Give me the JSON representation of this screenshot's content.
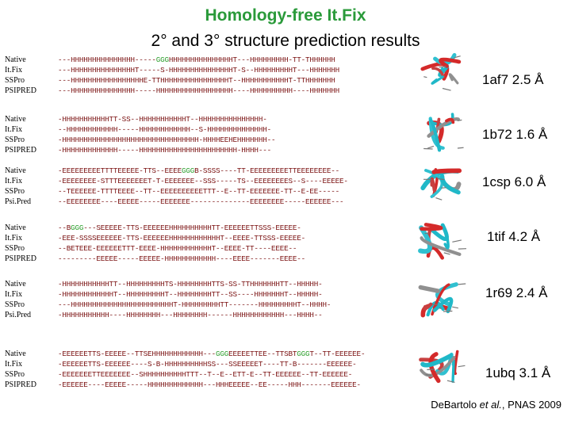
{
  "title": "Homology-free It.Fix",
  "subtitle": "2° and 3° structure prediction results",
  "footer": {
    "author": "DeBartolo ",
    "etal": "et al.",
    "journal": ", PNAS 2009"
  },
  "blocks": [
    {
      "labels": [
        "Native",
        "It.Fix",
        "SSPro",
        "PSIPRED"
      ],
      "seqs": [
        [
          "---HHHHHHHHHHHHHHH-----",
          "GGG",
          "HHHHHHHHHHHHHHHT---HHHHHHHHH-TT-THHHHHH"
        ],
        [
          "---HHHHHHHHHHHHHHHT-----S-HHHHHHHHHHHHHHHT-S--HHHHHHHHHT---HHHHHHH"
        ],
        [
          "---HHHHHHHHHHHHHHHHHE-TTHHHHHHHHHHHHHHHHT--HHHHHHHHHHHT-TTHHHHHHH"
        ],
        [
          "---HHHHHHHHHHHHHHH-----HHHHHHHHHHHHHHHHHH----HHHHHHHHHH----HHHHHHH"
        ]
      ],
      "caption": "1af7 2.5 Å"
    },
    {
      "labels": [
        "Native",
        "It.Fix",
        "SSPro",
        "PSIPRED"
      ],
      "seqs": [
        [
          "-HHHHHHHHHHHTT-SS--HHHHHHHHHHHT--HHHHHHHHHHHHHHH-"
        ],
        [
          "--HHHHHHHHHHHH-----HHHHHHHHHHHH--S-HHHHHHHHHHHHHH-"
        ],
        [
          "-HHHHHHHHHHHHHHHHHHHHHHHHHHHHHHHH-HHHHEEHEHHHHHHH--"
        ],
        [
          "-HHHHHHHHHHHHH-----HHHHHHHHHHHHHHHHHHHHHHH-HHHH---"
        ]
      ],
      "caption": "1b72 1.6 Å"
    },
    {
      "labels": [
        "Native",
        "It.Fix",
        "SSPro",
        "Psi.Pred"
      ],
      "seqs": [
        [
          "-EEEEEEEEETTTTEEEEE-TTS--EEEE",
          "GGG",
          "B-SSSS----TT-EEEEEEEEETTEEEEEEEE--"
        ],
        [
          "-EEEEEEEE-STTTEEEEEEET-T-EEEEEEE--SSS-----TS--EEEEEEEES--S----EEEEE-"
        ],
        [
          "--TEEEEEE-TTTTEEEE--TT--EEEEEEEEEETTT--E--TT-EEEEEEE-TT--E-EE-----"
        ],
        [
          "--EEEEEEEE----EEEEE-----EEEEEEE--------------EEEEEEEE-----EEEEEE---"
        ]
      ],
      "caption": "1csp 6.0 Å"
    },
    {
      "labels": [
        "Native",
        "It.Fix",
        "SSPro",
        "PSIPRED"
      ],
      "seqs": [
        [
          "--B",
          "GGG",
          "---SEEEEE-TTS-EEEEEEHHHHHHHHHHTT-EEEEEETTSSS-EEEEE-"
        ],
        [
          "-EEE-SSSSEEEEEE-TTS-EEEEEEHHHHHHHHHHHHT--EEEE-TTSSS-EEEEE-"
        ],
        [
          "--BETEEE-EEEEEETTT-EEEE-HHHHHHHHHHHHT--EEEE-TT----EEEE--"
        ],
        [
          "---------EEEEE-----EEEEE-HHHHHHHHHHHH----EEEE-------EEEE--"
        ]
      ],
      "caption": "1tif 4.2 Å"
    },
    {
      "labels": [
        "Native",
        "It.Fix",
        "SSPro",
        "Psi.Pred"
      ],
      "seqs": [
        [
          "-HHHHHHHHHHHTT--HHHHHHHHHTS-HHHHHHHHTTS-SS-TTHHHHHHHTT--HHHHH-"
        ],
        [
          "-HHHHHHHHHHHHT--HHHHHHHHHT--HHHHHHHHTT--SS----HHHHHHHT--HHHHH-"
        ],
        [
          "---HHHHHHHHHHHHHHHHHHHHHHHHT-HHHHHHHHHTT-------HHHHHHHHHT--HHHH-"
        ],
        [
          "-HHHHHHHHHHH----HHHHHHHH---HHHHHHHH------HHHHHHHHHHHH---HHHH--"
        ]
      ],
      "caption": "1r69 2.4 Å"
    },
    {
      "labels": [
        "Native",
        "It.Fix",
        "SSPro",
        "PSIPRED"
      ],
      "seqs": [
        [
          "-EEEEEETTS-EEEEE--TTSEHHHHHHHHHHHH---",
          "GGG",
          "EEEEETTEE--TTSBT",
          "GGG",
          "T--TT-EEEEEE-"
        ],
        [
          "-EEEEEETTS-EEEEEE----S-B-HHHHHHHHHHSS---SSEEEEET----TT-B-------EEEEEE-"
        ],
        [
          "-EEEEEEETTEEEEEEE--SHHHHHHHHHHTTT--T--E--ETT-E--TT-EEEEEE--TT-EEEEEE-"
        ],
        [
          "-EEEEEE----EEEEE-----HHHHHHHHHHHHH---HHHEEEEE--EE-----HHH-------EEEEEE-"
        ]
      ],
      "caption": "1ubq 3.1 Å"
    }
  ]
}
